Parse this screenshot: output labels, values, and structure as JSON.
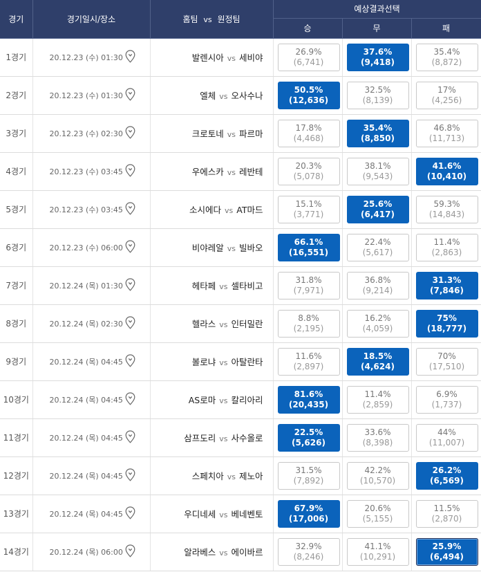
{
  "header": {
    "round": "경기",
    "datetime": "경기일시/장소",
    "home": "홈팀",
    "vs": "vs",
    "away": "원정팀",
    "prediction": "예상결과선택",
    "win": "승",
    "draw": "무",
    "loss": "패"
  },
  "matches": [
    {
      "round": "1경기",
      "date": "20.12.23 (수) 01:30",
      "home": "발렌시아",
      "vs": "vs",
      "away": "세비야",
      "win": {
        "pct": "26.9%",
        "count": "(6,741)"
      },
      "draw": {
        "pct": "37.6%",
        "count": "(9,418)"
      },
      "loss": {
        "pct": "35.4%",
        "count": "(8,872)"
      },
      "selected": "draw"
    },
    {
      "round": "2경기",
      "date": "20.12.23 (수) 01:30",
      "home": "엘체",
      "vs": "vs",
      "away": "오사수나",
      "win": {
        "pct": "50.5%",
        "count": "(12,636)"
      },
      "draw": {
        "pct": "32.5%",
        "count": "(8,139)"
      },
      "loss": {
        "pct": "17%",
        "count": "(4,256)"
      },
      "selected": "win"
    },
    {
      "round": "3경기",
      "date": "20.12.23 (수) 02:30",
      "home": "크로토네",
      "vs": "vs",
      "away": "파르마",
      "win": {
        "pct": "17.8%",
        "count": "(4,468)"
      },
      "draw": {
        "pct": "35.4%",
        "count": "(8,850)"
      },
      "loss": {
        "pct": "46.8%",
        "count": "(11,713)"
      },
      "selected": "draw"
    },
    {
      "round": "4경기",
      "date": "20.12.23 (수) 03:45",
      "home": "우에스카",
      "vs": "vs",
      "away": "레반테",
      "win": {
        "pct": "20.3%",
        "count": "(5,078)"
      },
      "draw": {
        "pct": "38.1%",
        "count": "(9,543)"
      },
      "loss": {
        "pct": "41.6%",
        "count": "(10,410)"
      },
      "selected": "loss"
    },
    {
      "round": "5경기",
      "date": "20.12.23 (수) 03:45",
      "home": "소시에다",
      "vs": "vs",
      "away": "AT마드",
      "win": {
        "pct": "15.1%",
        "count": "(3,771)"
      },
      "draw": {
        "pct": "25.6%",
        "count": "(6,417)"
      },
      "loss": {
        "pct": "59.3%",
        "count": "(14,843)"
      },
      "selected": "draw"
    },
    {
      "round": "6경기",
      "date": "20.12.23 (수) 06:00",
      "home": "비야레알",
      "vs": "vs",
      "away": "빌바오",
      "win": {
        "pct": "66.1%",
        "count": "(16,551)"
      },
      "draw": {
        "pct": "22.4%",
        "count": "(5,617)"
      },
      "loss": {
        "pct": "11.4%",
        "count": "(2,863)"
      },
      "selected": "win"
    },
    {
      "round": "7경기",
      "date": "20.12.24 (목) 01:30",
      "home": "헤타페",
      "vs": "vs",
      "away": "셀타비고",
      "win": {
        "pct": "31.8%",
        "count": "(7,971)"
      },
      "draw": {
        "pct": "36.8%",
        "count": "(9,214)"
      },
      "loss": {
        "pct": "31.3%",
        "count": "(7,846)"
      },
      "selected": "loss"
    },
    {
      "round": "8경기",
      "date": "20.12.24 (목) 02:30",
      "home": "헬라스",
      "vs": "vs",
      "away": "인터밀란",
      "win": {
        "pct": "8.8%",
        "count": "(2,195)"
      },
      "draw": {
        "pct": "16.2%",
        "count": "(4,059)"
      },
      "loss": {
        "pct": "75%",
        "count": "(18,777)"
      },
      "selected": "loss"
    },
    {
      "round": "9경기",
      "date": "20.12.24 (목) 04:45",
      "home": "볼로냐",
      "vs": "vs",
      "away": "아탈란타",
      "win": {
        "pct": "11.6%",
        "count": "(2,897)"
      },
      "draw": {
        "pct": "18.5%",
        "count": "(4,624)"
      },
      "loss": {
        "pct": "70%",
        "count": "(17,510)"
      },
      "selected": "draw"
    },
    {
      "round": "10경기",
      "date": "20.12.24 (목) 04:45",
      "home": "AS로마",
      "vs": "vs",
      "away": "칼리아리",
      "win": {
        "pct": "81.6%",
        "count": "(20,435)"
      },
      "draw": {
        "pct": "11.4%",
        "count": "(2,859)"
      },
      "loss": {
        "pct": "6.9%",
        "count": "(1,737)"
      },
      "selected": "win"
    },
    {
      "round": "11경기",
      "date": "20.12.24 (목) 04:45",
      "home": "삼프도리",
      "vs": "vs",
      "away": "사수올로",
      "win": {
        "pct": "22.5%",
        "count": "(5,626)"
      },
      "draw": {
        "pct": "33.6%",
        "count": "(8,398)"
      },
      "loss": {
        "pct": "44%",
        "count": "(11,007)"
      },
      "selected": "win"
    },
    {
      "round": "12경기",
      "date": "20.12.24 (목) 04:45",
      "home": "스페치아",
      "vs": "vs",
      "away": "제노아",
      "win": {
        "pct": "31.5%",
        "count": "(7,892)"
      },
      "draw": {
        "pct": "42.2%",
        "count": "(10,570)"
      },
      "loss": {
        "pct": "26.2%",
        "count": "(6,569)"
      },
      "selected": "loss"
    },
    {
      "round": "13경기",
      "date": "20.12.24 (목) 04:45",
      "home": "우디네세",
      "vs": "vs",
      "away": "베네벤토",
      "win": {
        "pct": "67.9%",
        "count": "(17,006)"
      },
      "draw": {
        "pct": "20.6%",
        "count": "(5,155)"
      },
      "loss": {
        "pct": "11.5%",
        "count": "(2,870)"
      },
      "selected": "win"
    },
    {
      "round": "14경기",
      "date": "20.12.24 (목) 06:00",
      "home": "알라베스",
      "vs": "vs",
      "away": "에이바르",
      "win": {
        "pct": "32.9%",
        "count": "(8,246)"
      },
      "draw": {
        "pct": "41.1%",
        "count": "(10,291)"
      },
      "loss": {
        "pct": "25.9%",
        "count": "(6,494)"
      },
      "selected": "loss"
    }
  ],
  "icons": {
    "venue": "location-pin-icon"
  },
  "colors": {
    "header_bg": "#2f3f6a",
    "selected_bg": "#0b63bb",
    "header_text": "#ffffff"
  }
}
